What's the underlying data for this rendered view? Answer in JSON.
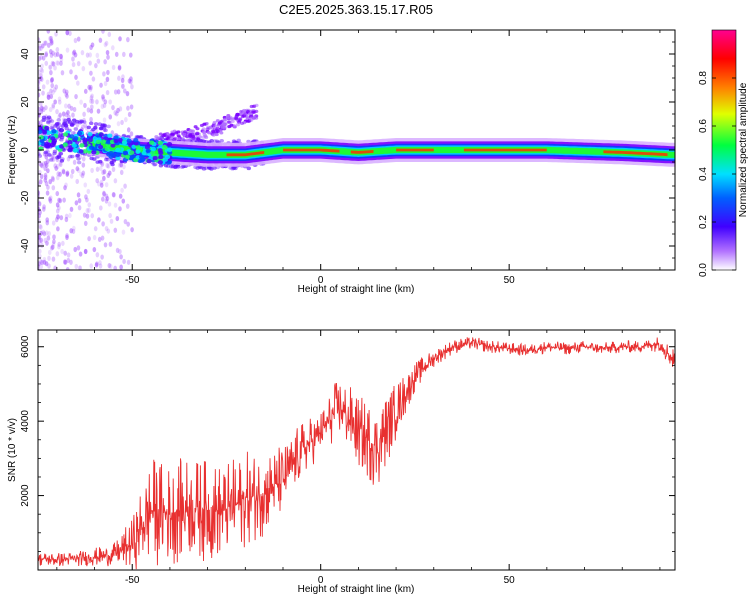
{
  "title": "C2E5.2025.363.15.17.R05",
  "chart_data": [
    {
      "type": "heatmap",
      "name": "spectrogram",
      "xlabel": "Height of straight line (km)",
      "ylabel": "Frequency (Hz)",
      "xlim": [
        -75,
        94
      ],
      "ylim": [
        -50,
        50
      ],
      "xticks": [
        -50,
        0,
        50
      ],
      "yticks": [
        -40,
        -20,
        0,
        20,
        40
      ],
      "colorbar": {
        "label": "Normalized spectral amplitude",
        "range": [
          0,
          1
        ],
        "ticks": [
          "0.0",
          "0.2",
          "0.4",
          "0.6",
          "0.8"
        ],
        "colors": [
          "#ffffff",
          "#8a00ff",
          "#0000ff",
          "#00ffff",
          "#00ff00",
          "#ffff00",
          "#ff8000",
          "#ff0000",
          "#ff0090"
        ]
      },
      "ridge": [
        {
          "x": -73,
          "y": 5
        },
        {
          "x": -65,
          "y": 4
        },
        {
          "x": -58,
          "y": 2
        },
        {
          "x": -50,
          "y": 0
        },
        {
          "x": -40,
          "y": -1
        },
        {
          "x": -30,
          "y": -2
        },
        {
          "x": -20,
          "y": -2
        },
        {
          "x": -10,
          "y": 0
        },
        {
          "x": 0,
          "y": 0
        },
        {
          "x": 10,
          "y": -1
        },
        {
          "x": 20,
          "y": 0
        },
        {
          "x": 40,
          "y": 0
        },
        {
          "x": 60,
          "y": 0
        },
        {
          "x": 80,
          "y": -1
        },
        {
          "x": 93,
          "y": -2
        }
      ],
      "secondary_branch": [
        {
          "x": -45,
          "y": 3
        },
        {
          "x": -35,
          "y": 6
        },
        {
          "x": -28,
          "y": 9
        },
        {
          "x": -22,
          "y": 13
        },
        {
          "x": -17,
          "y": 16
        }
      ]
    },
    {
      "type": "line",
      "name": "snr",
      "xlabel": "Height of straight line (km)",
      "ylabel": "SNR (10 * v/v)",
      "xlim": [
        -75,
        94
      ],
      "ylim": [
        0,
        6450
      ],
      "xticks": [
        -50,
        0,
        50
      ],
      "yticks": [
        2000,
        4000,
        6000
      ],
      "color": "#e83030",
      "series": [
        {
          "name": "SNR",
          "x": [
            -75,
            -70,
            -65,
            -60,
            -55,
            -50,
            -45,
            -40,
            -35,
            -30,
            -25,
            -20,
            -15,
            -10,
            -5,
            0,
            5,
            10,
            15,
            20,
            25,
            30,
            35,
            40,
            45,
            50,
            55,
            60,
            65,
            70,
            75,
            80,
            85,
            90,
            94
          ],
          "y": [
            300,
            280,
            300,
            350,
            400,
            700,
            1600,
            1500,
            1700,
            1600,
            1600,
            1900,
            2100,
            2400,
            3200,
            3700,
            4400,
            3700,
            3300,
            4300,
            5200,
            5700,
            6000,
            6100,
            6000,
            5950,
            5900,
            6000,
            5950,
            6000,
            5950,
            6000,
            6000,
            6100,
            5600
          ],
          "spread": [
            200,
            200,
            200,
            250,
            300,
            700,
            1500,
            1400,
            1400,
            1400,
            1300,
            1300,
            1200,
            1000,
            800,
            600,
            900,
            1000,
            1200,
            800,
            400,
            250,
            200,
            180,
            180,
            170,
            170,
            170,
            170,
            170,
            170,
            170,
            170,
            220,
            400
          ]
        }
      ]
    }
  ]
}
